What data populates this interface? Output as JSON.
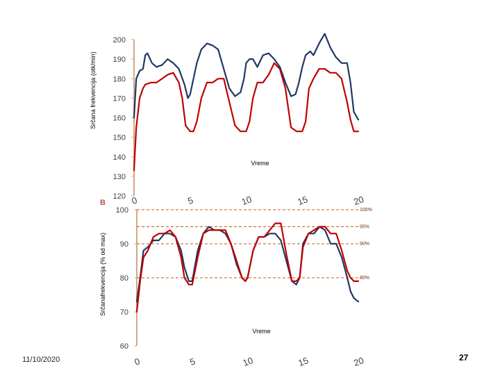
{
  "slide": {
    "date": "11/10/2020",
    "page_number": "27",
    "panel_b_label": "B"
  },
  "colors": {
    "series_a": "#1f3864",
    "series_b": "#c00000",
    "axis": "#d4a78a",
    "ref_line": "#c55a11"
  },
  "chart_data": [
    {
      "type": "line",
      "ylabel": "Srčana frekvencija (otk/min)",
      "xlabel": "Vreme",
      "ylim": [
        120,
        200
      ],
      "xlim": [
        0,
        20
      ],
      "yticks": [
        "120",
        "130",
        "140",
        "150",
        "160",
        "170",
        "180",
        "190",
        "200"
      ],
      "xticks": [
        "0",
        "5",
        "10",
        "15",
        "20"
      ],
      "series": [
        {
          "name": "blue",
          "x": [
            0,
            0.2,
            0.5,
            0.8,
            1.0,
            1.2,
            1.6,
            2.0,
            2.5,
            3.0,
            3.5,
            4.0,
            4.5,
            4.8,
            5.0,
            5.3,
            5.6,
            6.0,
            6.5,
            7.0,
            7.5,
            8.0,
            8.5,
            9.0,
            9.5,
            9.8,
            10.0,
            10.3,
            10.6,
            11.0,
            11.5,
            12.0,
            12.5,
            13.0,
            13.5,
            14.0,
            14.4,
            14.7,
            15.0,
            15.3,
            15.7,
            16.0,
            16.5,
            17.0,
            17.5,
            18.0,
            18.5,
            19.0,
            19.3,
            19.6,
            20.0
          ],
          "y": [
            160,
            180,
            184,
            185,
            192,
            193,
            188,
            186,
            187,
            190,
            188,
            185,
            177,
            170,
            172,
            180,
            188,
            195,
            198,
            197,
            195,
            185,
            175,
            171,
            173,
            180,
            188,
            190,
            190,
            186,
            192,
            193,
            190,
            186,
            178,
            171,
            172,
            178,
            186,
            192,
            194,
            192,
            198,
            203,
            196,
            191,
            188,
            188,
            178,
            163,
            159
          ]
        },
        {
          "name": "red",
          "x": [
            0,
            0.2,
            0.5,
            0.8,
            1.0,
            1.5,
            2.0,
            2.5,
            3.0,
            3.5,
            4.0,
            4.3,
            4.6,
            5.0,
            5.3,
            5.6,
            6.0,
            6.5,
            7.0,
            7.5,
            8.0,
            8.5,
            9.0,
            9.5,
            10.0,
            10.3,
            10.6,
            11.0,
            11.5,
            12.0,
            12.5,
            13.0,
            13.5,
            14.0,
            14.5,
            15.0,
            15.3,
            15.6,
            16.0,
            16.5,
            17.0,
            17.5,
            18.0,
            18.5,
            19.0,
            19.3,
            19.6,
            20.0
          ],
          "y": [
            133,
            155,
            170,
            175,
            177,
            178,
            178,
            180,
            182,
            183,
            178,
            170,
            156,
            153,
            153,
            158,
            170,
            178,
            178,
            180,
            180,
            168,
            156,
            153,
            153,
            158,
            170,
            178,
            178,
            182,
            188,
            185,
            175,
            155,
            153,
            153,
            158,
            175,
            180,
            185,
            185,
            183,
            183,
            180,
            168,
            159,
            153,
            153
          ]
        }
      ]
    },
    {
      "type": "line",
      "ylabel": "Srčanafrekvencija (% od max)",
      "xlabel": "Vreme",
      "ylim": [
        60,
        100
      ],
      "xlim": [
        0,
        20
      ],
      "yticks": [
        "60",
        "70",
        "80",
        "90",
        "100"
      ],
      "xticks": [
        "0",
        "5",
        "10",
        "15",
        "20"
      ],
      "reference_lines": [
        {
          "value": 100,
          "label": "100%"
        },
        {
          "value": 95,
          "label": "95%"
        },
        {
          "value": 90,
          "label": "90%"
        },
        {
          "value": 80,
          "label": "80%"
        }
      ],
      "series": [
        {
          "name": "blue",
          "x": [
            0,
            0.3,
            0.6,
            1.0,
            1.5,
            2.0,
            2.5,
            3.0,
            3.5,
            4.0,
            4.3,
            4.7,
            5.0,
            5.5,
            6.0,
            6.5,
            7.0,
            7.5,
            8.0,
            8.5,
            9.0,
            9.5,
            9.8,
            10.0,
            10.5,
            11.0,
            11.5,
            12.0,
            12.5,
            13.0,
            13.5,
            14.0,
            14.4,
            14.7,
            15.0,
            15.5,
            16.0,
            16.5,
            17.0,
            17.5,
            18.0,
            18.5,
            19.0,
            19.3,
            19.6,
            20.0
          ],
          "y": [
            73,
            80,
            88,
            89,
            91,
            91,
            93,
            93,
            92,
            88,
            83,
            79,
            79,
            88,
            93,
            95,
            94,
            94,
            93,
            90,
            84,
            80,
            79,
            80,
            88,
            92,
            92,
            93,
            93,
            91,
            85,
            79,
            78,
            80,
            90,
            93,
            93,
            95,
            94,
            90,
            90,
            86,
            80,
            76,
            74,
            73
          ]
        },
        {
          "name": "red",
          "x": [
            0,
            0.3,
            0.6,
            1.0,
            1.5,
            2.0,
            2.5,
            3.0,
            3.5,
            4.0,
            4.3,
            4.7,
            5.0,
            5.5,
            6.0,
            6.5,
            7.0,
            7.5,
            8.0,
            8.5,
            9.0,
            9.5,
            9.8,
            10.0,
            10.5,
            11.0,
            11.5,
            12.0,
            12.5,
            13.0,
            13.5,
            14.0,
            14.4,
            14.7,
            15.0,
            15.5,
            16.0,
            16.5,
            17.0,
            17.5,
            18.0,
            18.5,
            19.0,
            19.3,
            19.6,
            20.0
          ],
          "y": [
            70,
            79,
            86,
            88,
            92,
            93,
            93,
            94,
            92,
            86,
            80,
            78,
            78,
            86,
            93,
            94,
            94,
            94,
            94,
            90,
            85,
            80,
            79,
            80,
            88,
            92,
            92,
            94,
            96,
            96,
            87,
            79,
            79,
            80,
            89,
            93,
            94,
            95,
            95,
            93,
            93,
            88,
            82,
            80,
            79,
            79
          ]
        }
      ]
    }
  ]
}
